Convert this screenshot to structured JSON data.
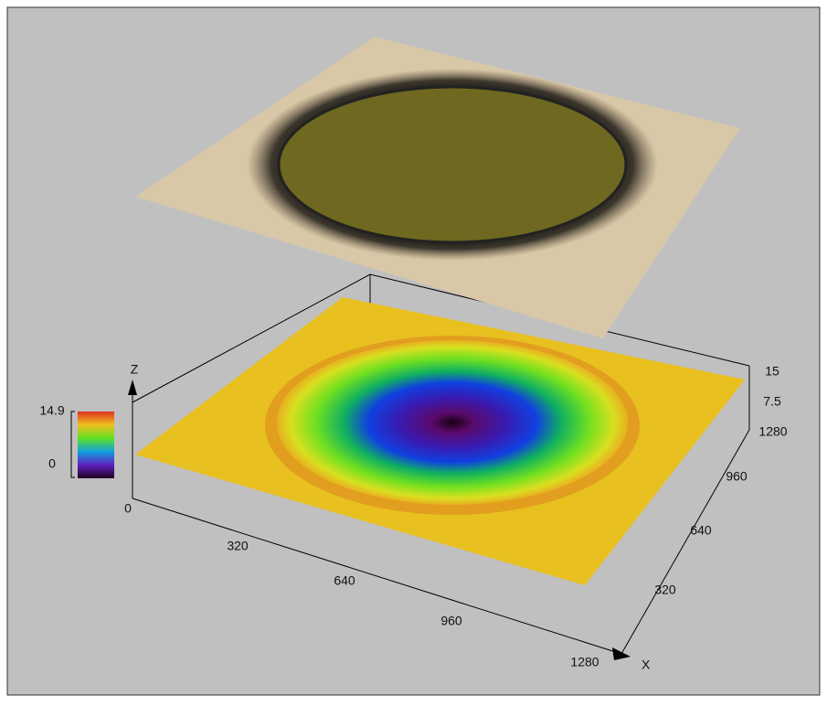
{
  "axes": {
    "x": {
      "label": "X",
      "origin": 0,
      "ticks": [
        320,
        640,
        960,
        1280
      ]
    },
    "y": {
      "ticks": [
        320,
        640,
        960,
        1280
      ]
    },
    "z": {
      "label": "Z",
      "ticks": [
        7.5,
        15
      ]
    }
  },
  "colorbar": {
    "max": 14.9,
    "min": 0
  }
}
